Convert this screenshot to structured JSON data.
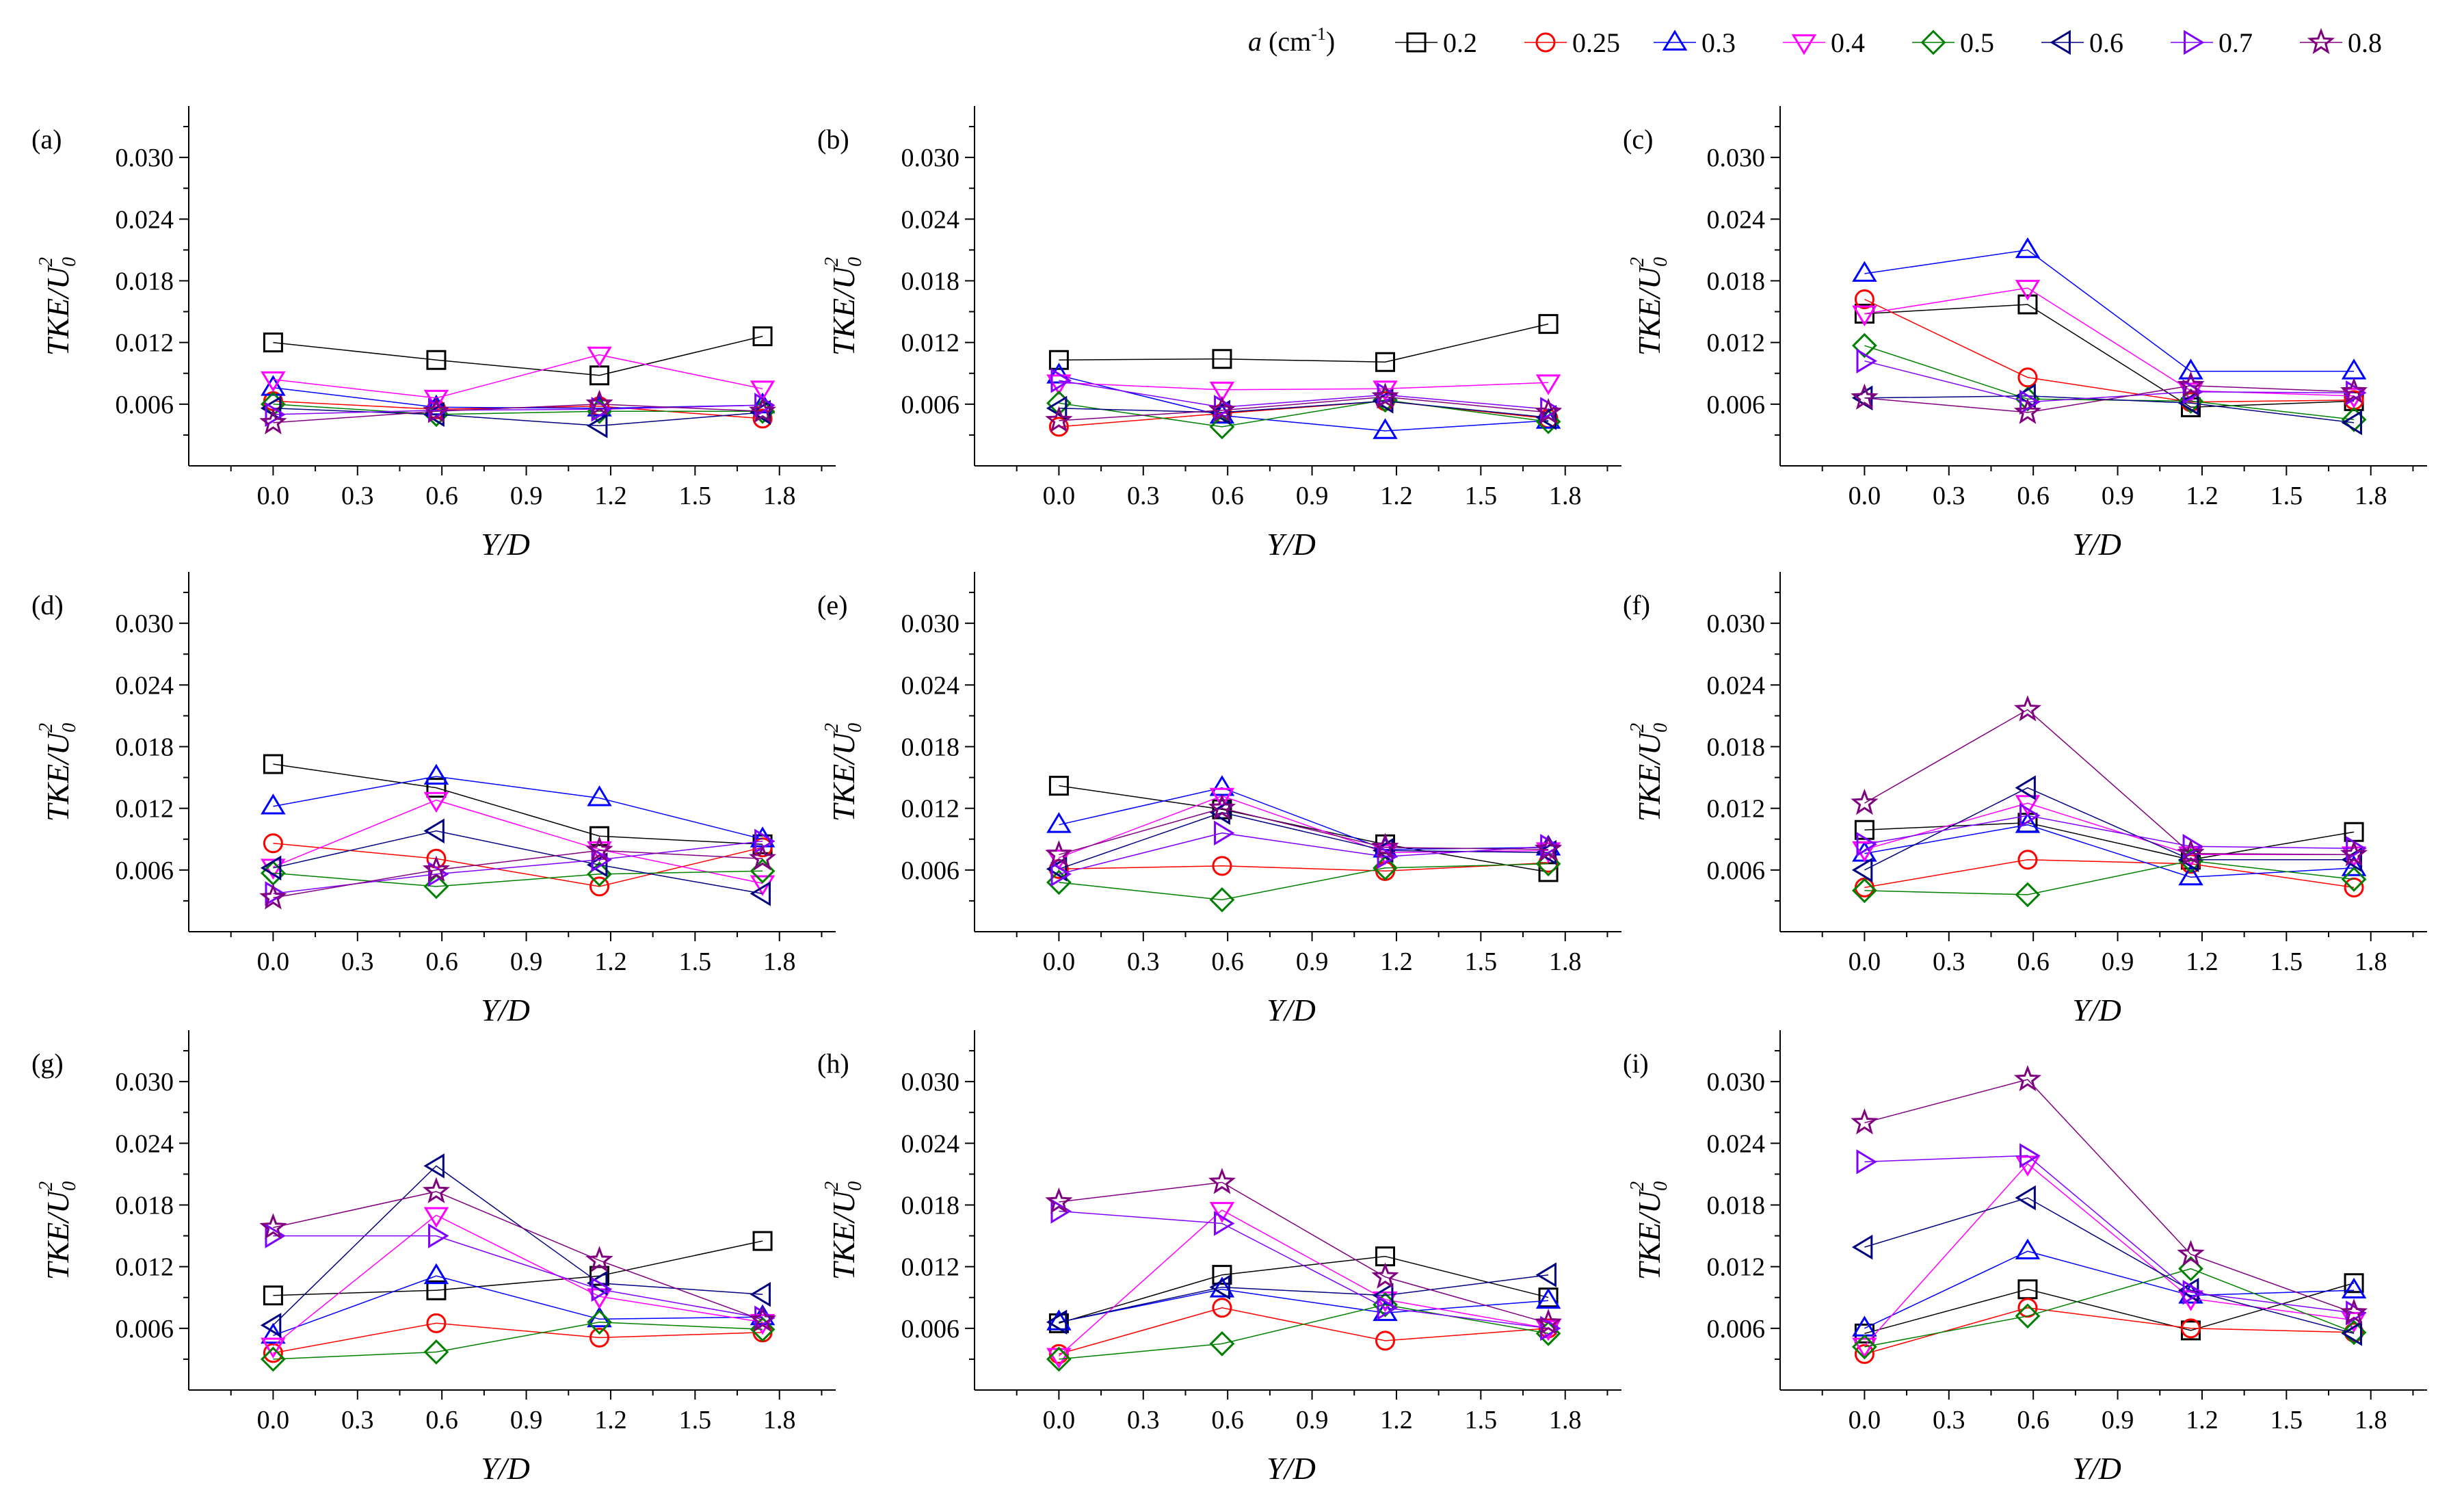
{
  "legend": {
    "var_label": "a",
    "unit_label": "(cm",
    "unit_sup": "-1",
    "unit_close": ")",
    "entries": [
      "0.2",
      "0.25",
      "0.3",
      "0.4",
      "0.5",
      "0.6",
      "0.7",
      "0.8"
    ]
  },
  "series_style": [
    {
      "name": "0.2",
      "color": "#000000",
      "marker": "square"
    },
    {
      "name": "0.25",
      "color": "#ff0000",
      "marker": "circle"
    },
    {
      "name": "0.3",
      "color": "#0000ff",
      "marker": "triangle-up"
    },
    {
      "name": "0.4",
      "color": "#ff00ff",
      "marker": "triangle-down"
    },
    {
      "name": "0.5",
      "color": "#008000",
      "marker": "diamond"
    },
    {
      "name": "0.6",
      "color": "#000080",
      "marker": "triangle-left"
    },
    {
      "name": "0.7",
      "color": "#8000ff",
      "marker": "triangle-right"
    },
    {
      "name": "0.8",
      "color": "#800080",
      "marker": "star"
    }
  ],
  "chart_data": [
    {
      "type": "line",
      "label": "(a)",
      "xlabel": "Y/D",
      "ylabel": "TKE/U0²",
      "x": [
        0,
        0.58,
        1.16,
        1.74
      ],
      "xlim": [
        -0.3,
        2.0
      ],
      "ylim": [
        0,
        0.035
      ],
      "xticks": [
        "0.0",
        "0.3",
        "0.6",
        "0.9",
        "1.2",
        "1.5",
        "1.8"
      ],
      "yticks": [
        "0.006",
        "0.012",
        "0.018",
        "0.024",
        "0.030"
      ],
      "series": [
        {
          "name": "0.2",
          "values": [
            0.012,
            0.0103,
            0.0088,
            0.0126
          ]
        },
        {
          "name": "0.25",
          "values": [
            0.0063,
            0.0055,
            0.0058,
            0.0046
          ]
        },
        {
          "name": "0.3",
          "values": [
            0.0076,
            0.0057,
            0.0056,
            0.0059
          ]
        },
        {
          "name": "0.4",
          "values": [
            0.0084,
            0.0066,
            0.0108,
            0.0075
          ]
        },
        {
          "name": "0.5",
          "values": [
            0.006,
            0.005,
            0.0053,
            0.0053
          ]
        },
        {
          "name": "0.6",
          "values": [
            0.0056,
            0.005,
            0.0039,
            0.0052
          ]
        },
        {
          "name": "0.7",
          "values": [
            0.005,
            0.0054,
            0.0055,
            0.0059
          ]
        },
        {
          "name": "0.8",
          "values": [
            0.0042,
            0.0053,
            0.006,
            0.0053
          ]
        }
      ]
    },
    {
      "type": "line",
      "label": "(b)",
      "xlabel": "Y/D",
      "ylabel": "TKE/U0²",
      "x": [
        0,
        0.58,
        1.16,
        1.74
      ],
      "xlim": [
        -0.3,
        2.0
      ],
      "ylim": [
        0,
        0.035
      ],
      "xticks": [
        "0.0",
        "0.3",
        "0.6",
        "0.9",
        "1.2",
        "1.5",
        "1.8"
      ],
      "yticks": [
        "0.006",
        "0.012",
        "0.018",
        "0.024",
        "0.030"
      ],
      "series": [
        {
          "name": "0.2",
          "values": [
            0.0103,
            0.0104,
            0.0101,
            0.0138
          ]
        },
        {
          "name": "0.25",
          "values": [
            0.0038,
            0.0051,
            0.0063,
            0.0046
          ]
        },
        {
          "name": "0.3",
          "values": [
            0.0088,
            0.0049,
            0.0034,
            0.0044
          ]
        },
        {
          "name": "0.4",
          "values": [
            0.0081,
            0.0074,
            0.0075,
            0.0081
          ]
        },
        {
          "name": "0.5",
          "values": [
            0.0061,
            0.0038,
            0.0064,
            0.0043
          ]
        },
        {
          "name": "0.6",
          "values": [
            0.0056,
            0.0052,
            0.0063,
            0.0047
          ]
        },
        {
          "name": "0.7",
          "values": [
            0.0083,
            0.0057,
            0.0069,
            0.0055
          ]
        },
        {
          "name": "0.8",
          "values": [
            0.0044,
            0.0054,
            0.0067,
            0.0052
          ]
        }
      ]
    },
    {
      "type": "line",
      "label": "(c)",
      "xlabel": "Y/D",
      "ylabel": "TKE/U0²",
      "x": [
        0,
        0.58,
        1.16,
        1.74
      ],
      "xlim": [
        -0.3,
        2.0
      ],
      "ylim": [
        0,
        0.035
      ],
      "xticks": [
        "0.0",
        "0.3",
        "0.6",
        "0.9",
        "1.2",
        "1.5",
        "1.8"
      ],
      "yticks": [
        "0.006",
        "0.012",
        "0.018",
        "0.024",
        "0.030"
      ],
      "series": [
        {
          "name": "0.2",
          "values": [
            0.0148,
            0.0157,
            0.0057,
            0.0063
          ]
        },
        {
          "name": "0.25",
          "values": [
            0.0162,
            0.0086,
            0.0062,
            0.0064
          ]
        },
        {
          "name": "0.3",
          "values": [
            0.0187,
            0.021,
            0.0092,
            0.0092
          ]
        },
        {
          "name": "0.4",
          "values": [
            0.0148,
            0.0173,
            0.0073,
            0.0068
          ]
        },
        {
          "name": "0.5",
          "values": [
            0.0117,
            0.0065,
            0.0063,
            0.0045
          ]
        },
        {
          "name": "0.6",
          "values": [
            0.0066,
            0.0068,
            0.0061,
            0.0042
          ]
        },
        {
          "name": "0.7",
          "values": [
            0.0102,
            0.0062,
            0.0072,
            0.0071
          ]
        },
        {
          "name": "0.8",
          "values": [
            0.0066,
            0.0052,
            0.0078,
            0.0072
          ]
        }
      ]
    },
    {
      "type": "line",
      "label": "(d)",
      "xlabel": "Y/D",
      "ylabel": "TKE/U0²",
      "x": [
        0,
        0.58,
        1.16,
        1.74
      ],
      "xlim": [
        -0.3,
        2.0
      ],
      "ylim": [
        0,
        0.035
      ],
      "xticks": [
        "0.0",
        "0.3",
        "0.6",
        "0.9",
        "1.2",
        "1.5",
        "1.8"
      ],
      "yticks": [
        "0.006",
        "0.012",
        "0.018",
        "0.024",
        "0.030"
      ],
      "series": [
        {
          "name": "0.2",
          "values": [
            0.0163,
            0.014,
            0.0093,
            0.0085
          ]
        },
        {
          "name": "0.25",
          "values": [
            0.0086,
            0.0071,
            0.0044,
            0.0082
          ]
        },
        {
          "name": "0.3",
          "values": [
            0.0122,
            0.0151,
            0.013,
            0.009
          ]
        },
        {
          "name": "0.4",
          "values": [
            0.0063,
            0.0128,
            0.008,
            0.0047
          ]
        },
        {
          "name": "0.5",
          "values": [
            0.0057,
            0.0044,
            0.0056,
            0.0059
          ]
        },
        {
          "name": "0.6",
          "values": [
            0.0062,
            0.0098,
            0.0065,
            0.0037
          ]
        },
        {
          "name": "0.7",
          "values": [
            0.0037,
            0.0056,
            0.007,
            0.0088
          ]
        },
        {
          "name": "0.8",
          "values": [
            0.0033,
            0.006,
            0.0079,
            0.0071
          ]
        }
      ]
    },
    {
      "type": "line",
      "label": "(e)",
      "xlabel": "Y/D",
      "ylabel": "TKE/U0²",
      "x": [
        0,
        0.58,
        1.16,
        1.74
      ],
      "xlim": [
        -0.3,
        2.0
      ],
      "ylim": [
        0,
        0.035
      ],
      "xticks": [
        "0.0",
        "0.3",
        "0.6",
        "0.9",
        "1.2",
        "1.5",
        "1.8"
      ],
      "yticks": [
        "0.006",
        "0.012",
        "0.018",
        "0.024",
        "0.030"
      ],
      "series": [
        {
          "name": "0.2",
          "values": [
            0.0142,
            0.0119,
            0.0085,
            0.0058
          ]
        },
        {
          "name": "0.25",
          "values": [
            0.0061,
            0.0064,
            0.0059,
            0.0067
          ]
        },
        {
          "name": "0.3",
          "values": [
            0.0104,
            0.014,
            0.008,
            0.0082
          ]
        },
        {
          "name": "0.4",
          "values": [
            0.0072,
            0.0132,
            0.0077,
            0.0079
          ]
        },
        {
          "name": "0.5",
          "values": [
            0.0048,
            0.0031,
            0.0062,
            0.0066
          ]
        },
        {
          "name": "0.6",
          "values": [
            0.0061,
            0.0116,
            0.0079,
            0.0077
          ]
        },
        {
          "name": "0.7",
          "values": [
            0.0056,
            0.0096,
            0.0073,
            0.0083
          ]
        },
        {
          "name": "0.8",
          "values": [
            0.0075,
            0.012,
            0.0082,
            0.008
          ]
        }
      ]
    },
    {
      "type": "line",
      "label": "(f)",
      "xlabel": "Y/D",
      "ylabel": "TKE/U0²",
      "x": [
        0,
        0.58,
        1.16,
        1.74
      ],
      "xlim": [
        -0.3,
        2.0
      ],
      "ylim": [
        0,
        0.035
      ],
      "xticks": [
        "0.0",
        "0.3",
        "0.6",
        "0.9",
        "1.2",
        "1.5",
        "1.8"
      ],
      "yticks": [
        "0.006",
        "0.012",
        "0.018",
        "0.024",
        "0.030"
      ],
      "series": [
        {
          "name": "0.2",
          "values": [
            0.0099,
            0.0106,
            0.007,
            0.0097
          ]
        },
        {
          "name": "0.25",
          "values": [
            0.0043,
            0.007,
            0.0066,
            0.0043
          ]
        },
        {
          "name": "0.3",
          "values": [
            0.0076,
            0.0104,
            0.0053,
            0.0062
          ]
        },
        {
          "name": "0.4",
          "values": [
            0.008,
            0.0125,
            0.0075,
            0.0075
          ]
        },
        {
          "name": "0.5",
          "values": [
            0.004,
            0.0036,
            0.0069,
            0.0051
          ]
        },
        {
          "name": "0.6",
          "values": [
            0.006,
            0.014,
            0.007,
            0.007
          ]
        },
        {
          "name": "0.7",
          "values": [
            0.0085,
            0.0113,
            0.0083,
            0.0081
          ]
        },
        {
          "name": "0.8",
          "values": [
            0.0125,
            0.0216,
            0.0076,
            0.0075
          ]
        }
      ]
    },
    {
      "type": "line",
      "label": "(g)",
      "xlabel": "Y/D",
      "ylabel": "TKE/U0²",
      "x": [
        0,
        0.58,
        1.16,
        1.74
      ],
      "xlim": [
        -0.3,
        2.0
      ],
      "ylim": [
        0,
        0.035
      ],
      "xticks": [
        "0.0",
        "0.3",
        "0.6",
        "0.9",
        "1.2",
        "1.5",
        "1.8"
      ],
      "yticks": [
        "0.006",
        "0.012",
        "0.018",
        "0.024",
        "0.030"
      ],
      "series": [
        {
          "name": "0.2",
          "values": [
            0.0092,
            0.0097,
            0.0111,
            0.0145
          ]
        },
        {
          "name": "0.25",
          "values": [
            0.0036,
            0.0065,
            0.0051,
            0.0056
          ]
        },
        {
          "name": "0.3",
          "values": [
            0.0053,
            0.0111,
            0.0069,
            0.0071
          ]
        },
        {
          "name": "0.4",
          "values": [
            0.0043,
            0.017,
            0.0091,
            0.0066
          ]
        },
        {
          "name": "0.5",
          "values": [
            0.003,
            0.0037,
            0.0066,
            0.0059
          ]
        },
        {
          "name": "0.6",
          "values": [
            0.0063,
            0.0218,
            0.0104,
            0.0093
          ]
        },
        {
          "name": "0.7",
          "values": [
            0.015,
            0.015,
            0.0098,
            0.007
          ]
        },
        {
          "name": "0.8",
          "values": [
            0.0158,
            0.0193,
            0.0126,
            0.0068
          ]
        }
      ]
    },
    {
      "type": "line",
      "label": "(h)",
      "xlabel": "Y/D",
      "ylabel": "TKE/U0²",
      "x": [
        0,
        0.58,
        1.16,
        1.74
      ],
      "xlim": [
        -0.3,
        2.0
      ],
      "ylim": [
        0,
        0.035
      ],
      "xticks": [
        "0.0",
        "0.3",
        "0.6",
        "0.9",
        "1.2",
        "1.5",
        "1.8"
      ],
      "yticks": [
        "0.006",
        "0.012",
        "0.018",
        "0.024",
        "0.030"
      ],
      "series": [
        {
          "name": "0.2",
          "values": [
            0.0065,
            0.0112,
            0.013,
            0.009
          ]
        },
        {
          "name": "0.25",
          "values": [
            0.0035,
            0.008,
            0.0048,
            0.006
          ]
        },
        {
          "name": "0.3",
          "values": [
            0.0066,
            0.0098,
            0.0075,
            0.0087
          ]
        },
        {
          "name": "0.4",
          "values": [
            0.0033,
            0.0175,
            0.0088,
            0.006
          ]
        },
        {
          "name": "0.5",
          "values": [
            0.003,
            0.0045,
            0.0083,
            0.0055
          ]
        },
        {
          "name": "0.6",
          "values": [
            0.0066,
            0.01,
            0.0092,
            0.0112
          ]
        },
        {
          "name": "0.7",
          "values": [
            0.0174,
            0.0162,
            0.008,
            0.006
          ]
        },
        {
          "name": "0.8",
          "values": [
            0.0183,
            0.0202,
            0.011,
            0.0065
          ]
        }
      ]
    },
    {
      "type": "line",
      "label": "(i)",
      "xlabel": "Y/D",
      "ylabel": "TKE/U0²",
      "x": [
        0,
        0.58,
        1.16,
        1.74
      ],
      "xlim": [
        -0.3,
        2.0
      ],
      "ylim": [
        0,
        0.035
      ],
      "xticks": [
        "0.0",
        "0.3",
        "0.6",
        "0.9",
        "1.2",
        "1.5",
        "1.8"
      ],
      "yticks": [
        "0.006",
        "0.012",
        "0.018",
        "0.024",
        "0.030"
      ],
      "series": [
        {
          "name": "0.2",
          "values": [
            0.0055,
            0.0098,
            0.0058,
            0.0104
          ]
        },
        {
          "name": "0.25",
          "values": [
            0.0035,
            0.008,
            0.006,
            0.0056
          ]
        },
        {
          "name": "0.3",
          "values": [
            0.006,
            0.0135,
            0.0092,
            0.0097
          ]
        },
        {
          "name": "0.4",
          "values": [
            0.0043,
            0.022,
            0.0089,
            0.0068
          ]
        },
        {
          "name": "0.5",
          "values": [
            0.0042,
            0.0072,
            0.0118,
            0.0056
          ]
        },
        {
          "name": "0.6",
          "values": [
            0.0139,
            0.0187,
            0.0097,
            0.0055
          ]
        },
        {
          "name": "0.7",
          "values": [
            0.0222,
            0.0228,
            0.0095,
            0.0075
          ]
        },
        {
          "name": "0.8",
          "values": [
            0.026,
            0.0302,
            0.0132,
            0.0075
          ]
        }
      ]
    }
  ]
}
